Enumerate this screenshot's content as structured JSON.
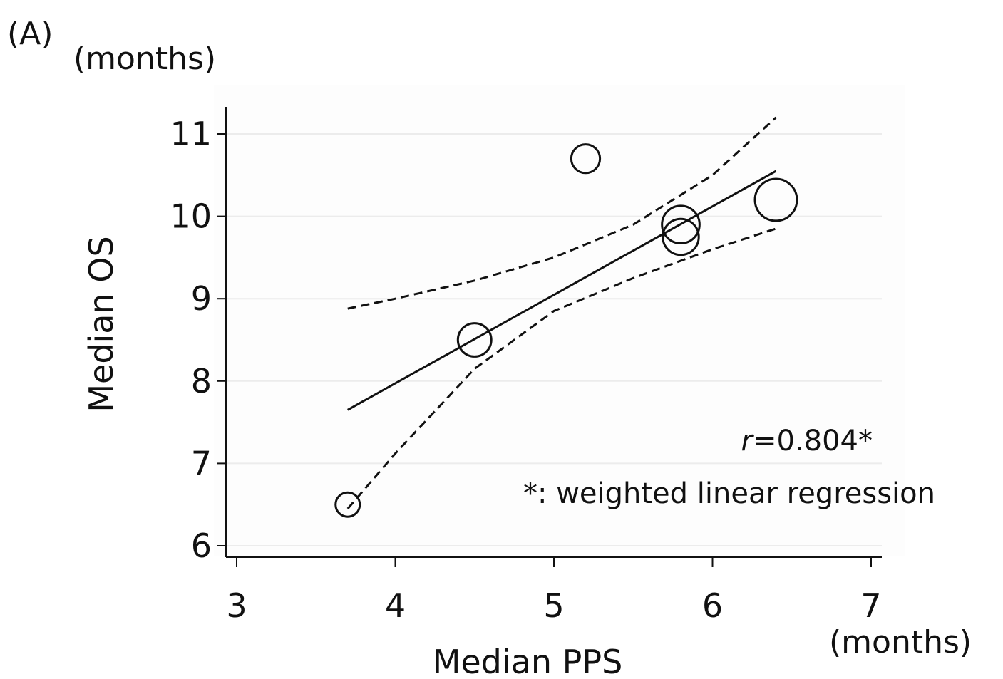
{
  "chart_data": {
    "panel_label": "(A)",
    "type": "scatter",
    "xlabel": "Median PPS",
    "ylabel": "Median OS",
    "x_unit": "(months)",
    "y_unit": "(months)",
    "xlim": [
      3,
      7
    ],
    "ylim": [
      6,
      11.3
    ],
    "xticks": [
      "3",
      "4",
      "5",
      "6",
      "7"
    ],
    "yticks": [
      "6",
      "7",
      "8",
      "9",
      "10",
      "11"
    ],
    "grid": "horizontal",
    "points": [
      {
        "x": 3.7,
        "y": 6.5,
        "weight": 1.0
      },
      {
        "x": 4.5,
        "y": 8.5,
        "weight": 1.9
      },
      {
        "x": 5.2,
        "y": 10.7,
        "weight": 1.4
      },
      {
        "x": 5.8,
        "y": 9.9,
        "weight": 2.4
      },
      {
        "x": 5.8,
        "y": 9.75,
        "weight": 2.2
      },
      {
        "x": 6.4,
        "y": 10.2,
        "weight": 3.0
      }
    ],
    "regression_line": [
      {
        "x": 3.7,
        "y": 7.65
      },
      {
        "x": 6.4,
        "y": 10.55
      }
    ],
    "upper_ci": [
      {
        "x": 3.7,
        "y": 8.88
      },
      {
        "x": 4.0,
        "y": 9.0
      },
      {
        "x": 4.5,
        "y": 9.22
      },
      {
        "x": 5.0,
        "y": 9.5
      },
      {
        "x": 5.5,
        "y": 9.9
      },
      {
        "x": 6.0,
        "y": 10.5
      },
      {
        "x": 6.4,
        "y": 11.2
      }
    ],
    "lower_ci": [
      {
        "x": 3.7,
        "y": 6.45
      },
      {
        "x": 4.0,
        "y": 7.12
      },
      {
        "x": 4.5,
        "y": 8.15
      },
      {
        "x": 5.0,
        "y": 8.85
      },
      {
        "x": 5.5,
        "y": 9.25
      },
      {
        "x": 6.0,
        "y": 9.6
      },
      {
        "x": 6.4,
        "y": 9.85
      }
    ],
    "annotation_r_symbol": "r",
    "annotation_r_value": "=0.804*",
    "annotation_note": "*: weighted linear regression"
  }
}
